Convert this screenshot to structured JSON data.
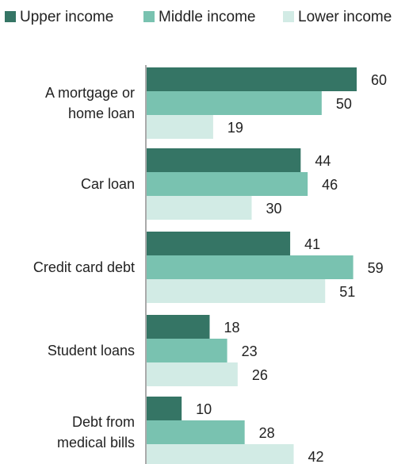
{
  "chart_data": {
    "type": "bar",
    "orientation": "horizontal",
    "title": "",
    "xlabel": "",
    "ylabel": "",
    "categories": [
      [
        "A mortgage or",
        "home loan"
      ],
      [
        "Car loan"
      ],
      [
        "Credit card debt"
      ],
      [
        "Student loans"
      ],
      [
        "Debt from",
        "medical bills"
      ]
    ],
    "series": [
      {
        "name": "Upper income",
        "color": "#357565",
        "values": [
          60,
          44,
          41,
          18,
          10
        ]
      },
      {
        "name": "Middle income",
        "color": "#79c2b0",
        "values": [
          50,
          46,
          59,
          23,
          28
        ]
      },
      {
        "name": "Lower income",
        "color": "#d2ebe5",
        "values": [
          19,
          30,
          51,
          26,
          42
        ]
      }
    ],
    "xlim": [
      0,
      60
    ],
    "grid": false,
    "legend": "top"
  }
}
